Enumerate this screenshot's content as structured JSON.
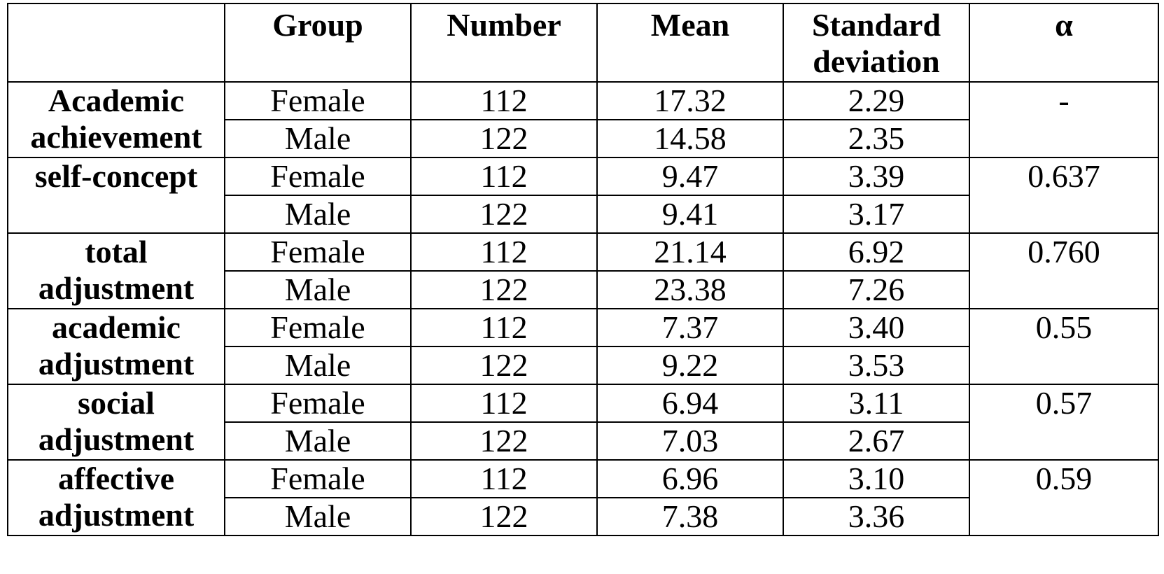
{
  "table": {
    "headers": [
      "",
      "Group",
      "Number",
      "Mean",
      "Standard deviation",
      "α"
    ],
    "rows": [
      {
        "label": "Academic achievement",
        "alpha": "-",
        "groups": [
          {
            "group": "Female",
            "number": "112",
            "mean": "17.32",
            "sd": "2.29"
          },
          {
            "group": "Male",
            "number": "122",
            "mean": "14.58",
            "sd": "2.35"
          }
        ]
      },
      {
        "label": "self-concept",
        "alpha": "0.637",
        "groups": [
          {
            "group": "Female",
            "number": "112",
            "mean": "9.47",
            "sd": "3.39"
          },
          {
            "group": "Male",
            "number": "122",
            "mean": "9.41",
            "sd": "3.17"
          }
        ]
      },
      {
        "label": "total adjustment",
        "alpha": "0.760",
        "groups": [
          {
            "group": "Female",
            "number": "112",
            "mean": "21.14",
            "sd": "6.92"
          },
          {
            "group": "Male",
            "number": "122",
            "mean": "23.38",
            "sd": "7.26"
          }
        ]
      },
      {
        "label": "academic adjustment",
        "alpha": "0.55",
        "groups": [
          {
            "group": "Female",
            "number": "112",
            "mean": "7.37",
            "sd": "3.40"
          },
          {
            "group": "Male",
            "number": "122",
            "mean": "9.22",
            "sd": "3.53"
          }
        ]
      },
      {
        "label": "social adjustment",
        "alpha": "0.57",
        "groups": [
          {
            "group": "Female",
            "number": "112",
            "mean": "6.94",
            "sd": "3.11"
          },
          {
            "group": "Male",
            "number": "122",
            "mean": "7.03",
            "sd": "2.67"
          }
        ]
      },
      {
        "label": "affective adjustment",
        "alpha": "0.59",
        "groups": [
          {
            "group": "Female",
            "number": "112",
            "mean": "6.96",
            "sd": "3.10"
          },
          {
            "group": "Male",
            "number": "122",
            "mean": "7.38",
            "sd": "3.36"
          }
        ]
      }
    ]
  }
}
